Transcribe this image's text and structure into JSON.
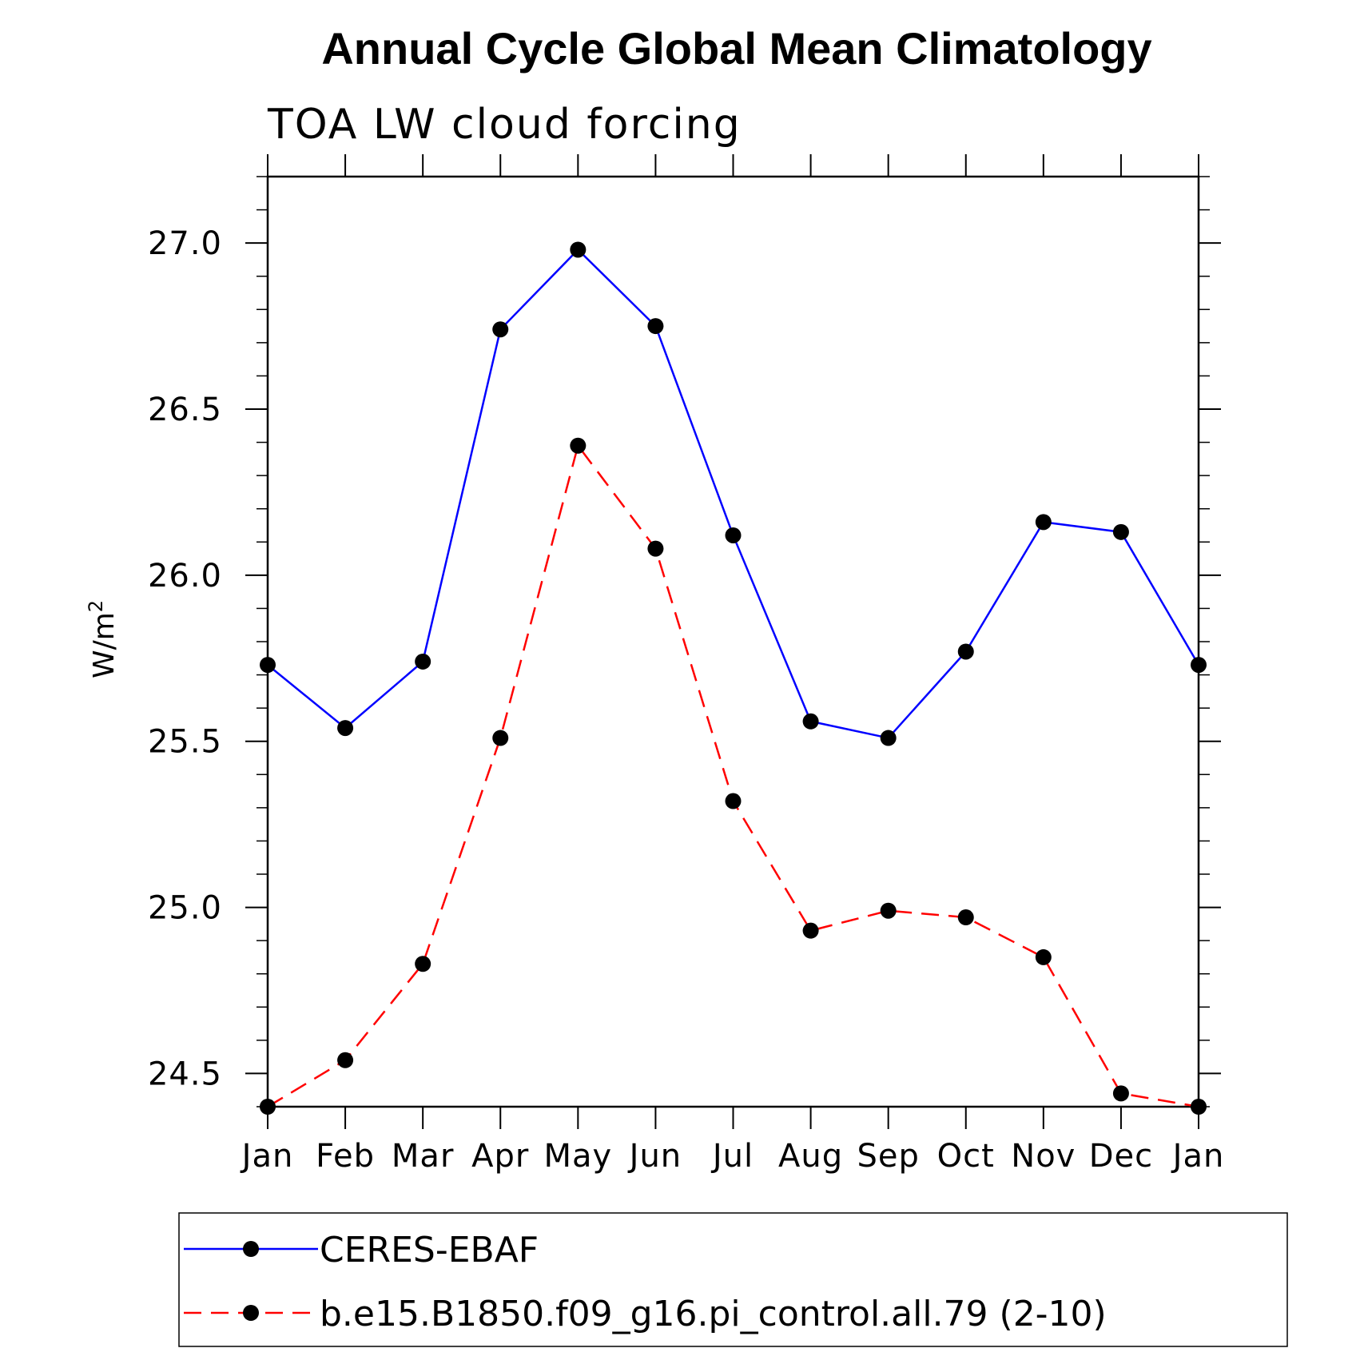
{
  "chart_data": {
    "type": "line",
    "title": "Annual Cycle Global Mean Climatology",
    "subtitle": "TOA LW cloud forcing",
    "ylabel_base": "W/m",
    "ylabel_sup": "2",
    "xlabel": "",
    "categories": [
      "Jan",
      "Feb",
      "Mar",
      "Apr",
      "May",
      "Jun",
      "Jul",
      "Aug",
      "Sep",
      "Oct",
      "Nov",
      "Dec",
      "Jan"
    ],
    "ylim": [
      24.4,
      27.2
    ],
    "yticks": [
      "24.5",
      "25.0",
      "25.5",
      "26.0",
      "26.5",
      "27.0"
    ],
    "series": [
      {
        "name": "CERES-EBAF",
        "color": "#0000ff",
        "dash": "solid",
        "values": [
          25.73,
          25.54,
          25.74,
          26.74,
          26.98,
          26.75,
          26.12,
          25.56,
          25.51,
          25.77,
          26.16,
          26.13,
          25.73
        ]
      },
      {
        "name": "b.e15.B1850.f09_g16.pi_control.all.79 (2-10)",
        "color": "#ff0000",
        "dash": "dashed",
        "values": [
          24.4,
          24.54,
          24.83,
          25.51,
          26.39,
          26.08,
          25.32,
          24.93,
          24.99,
          24.97,
          24.85,
          24.44,
          24.4
        ]
      }
    ],
    "legend_position": "bottom",
    "grid": false
  }
}
